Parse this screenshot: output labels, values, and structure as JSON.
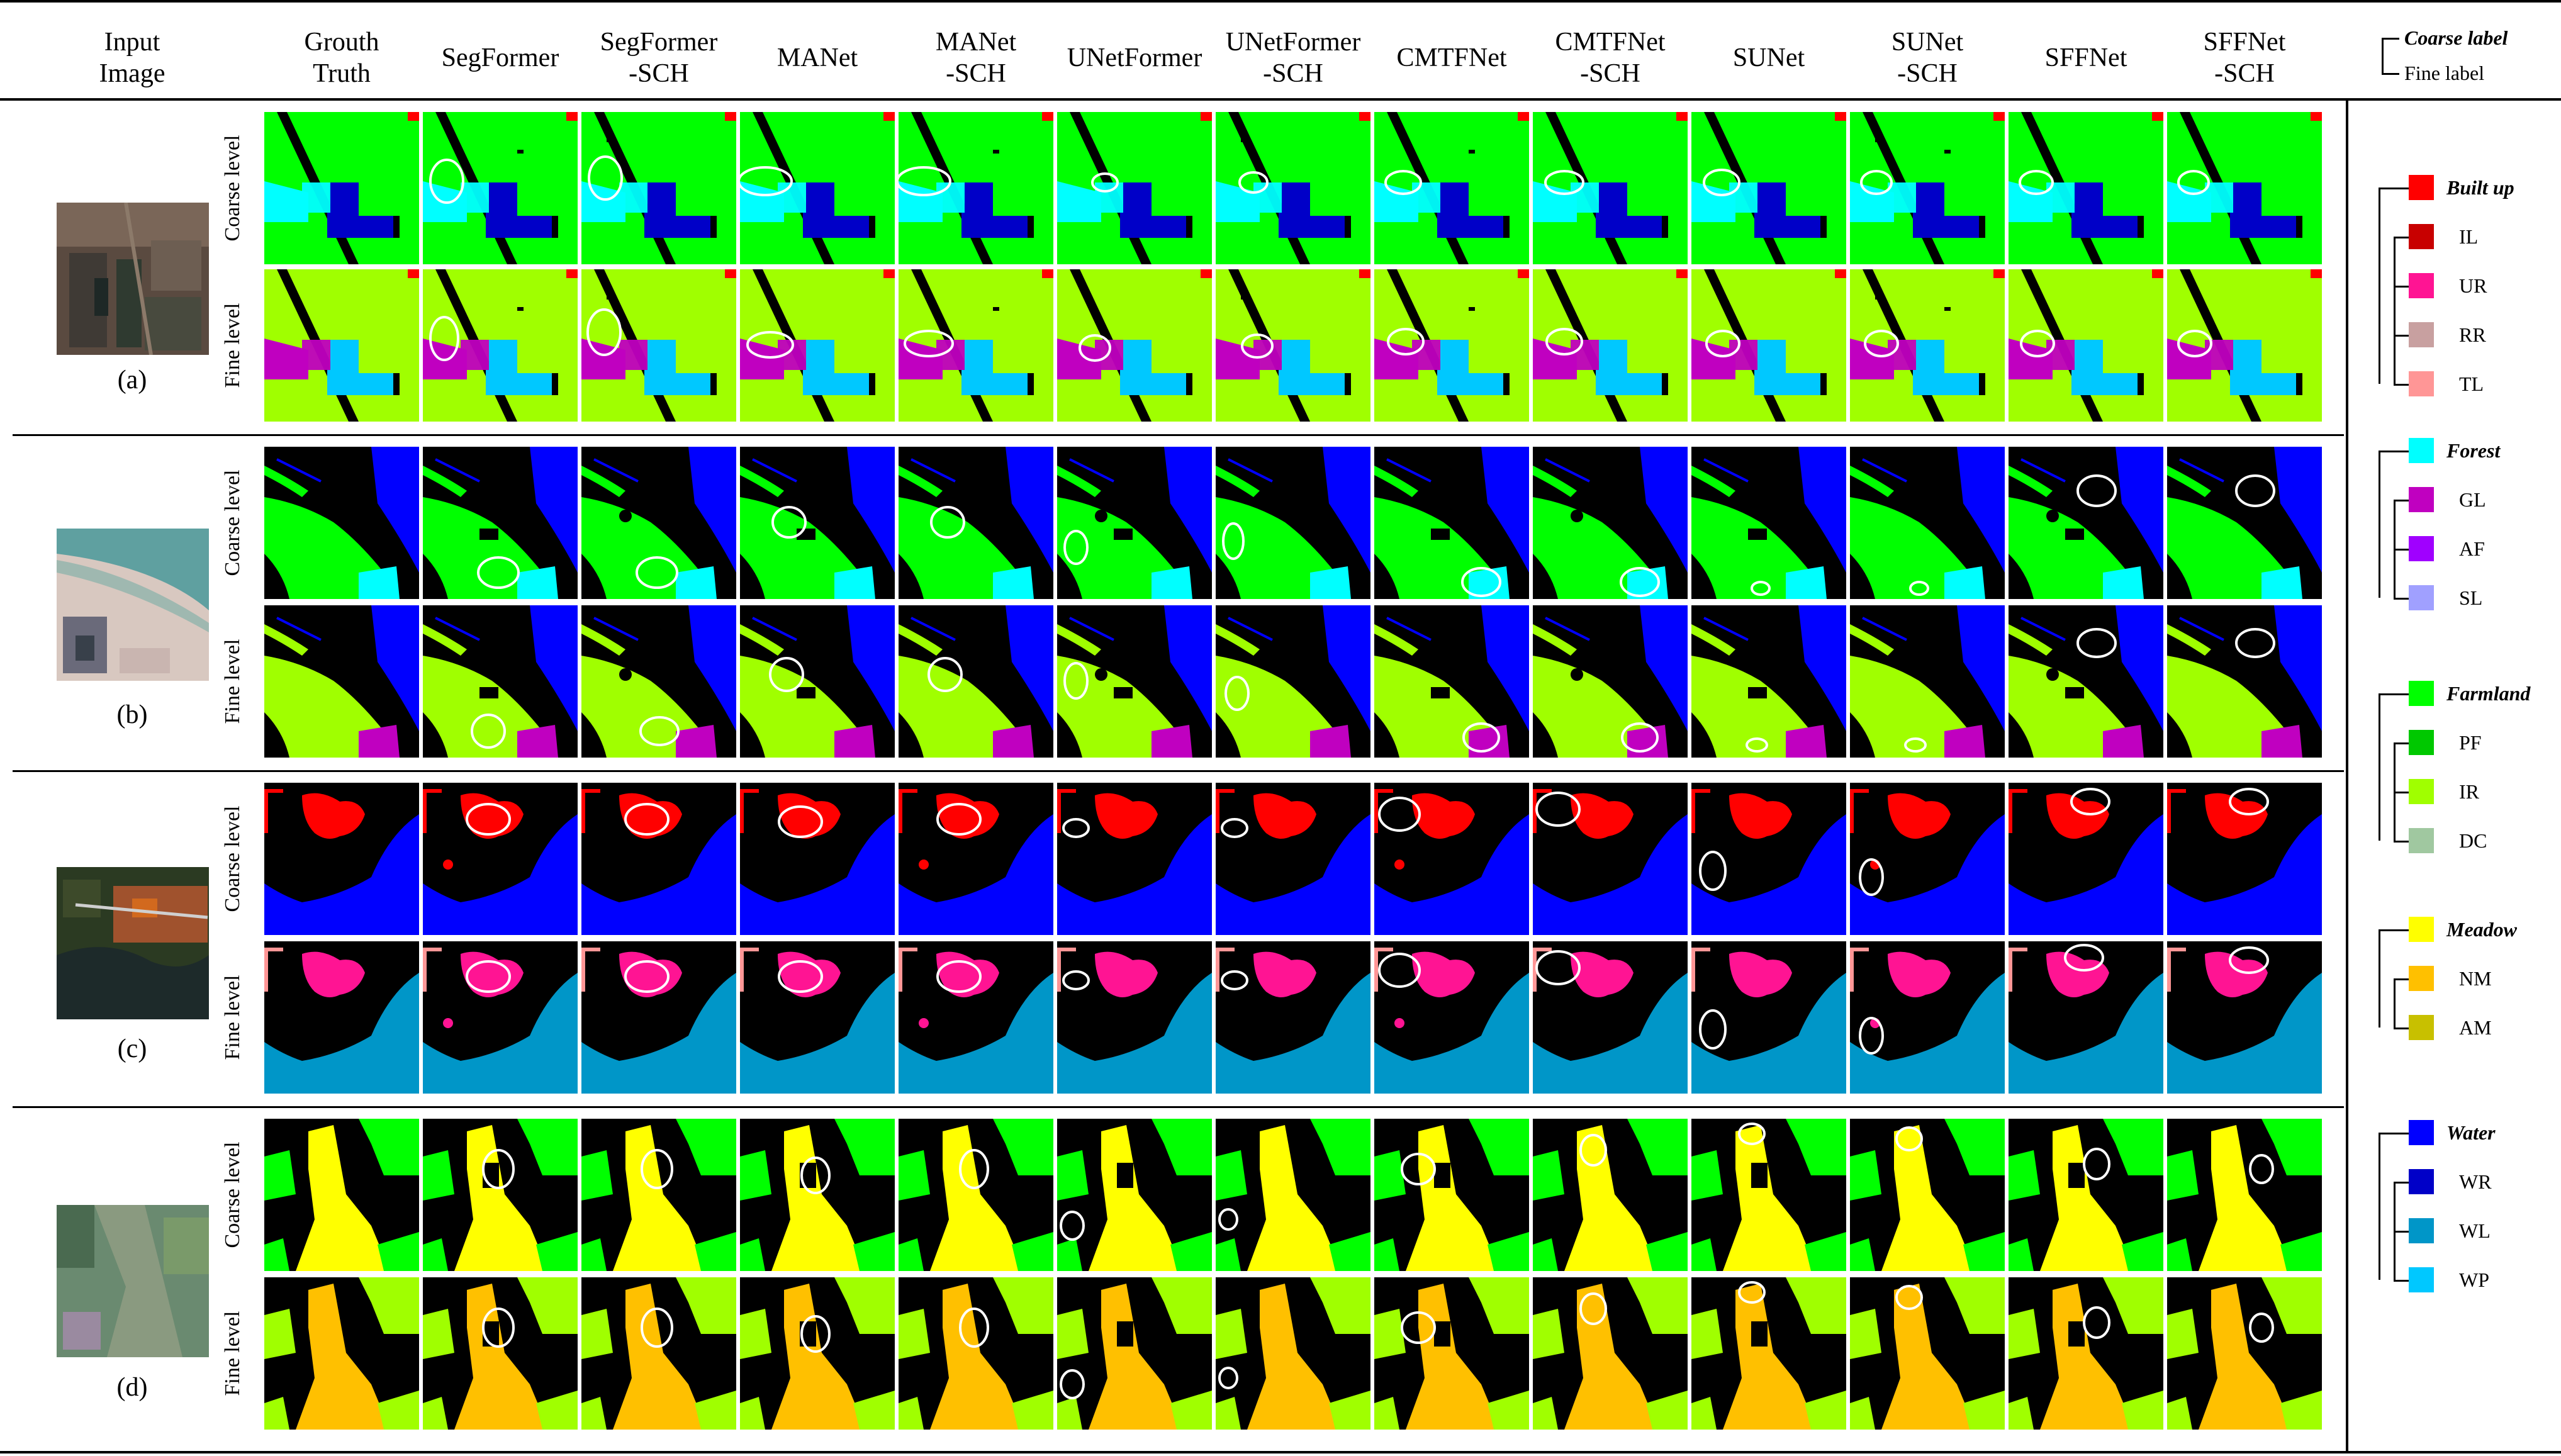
{
  "header": {
    "input_image": [
      "Input",
      "Image"
    ],
    "methods": [
      [
        "Grouth",
        "Truth"
      ],
      [
        "SegFormer"
      ],
      [
        "SegFormer",
        "-SCH"
      ],
      [
        "MANet"
      ],
      [
        "MANet",
        "-SCH"
      ],
      [
        "UNetFormer"
      ],
      [
        "UNetFormer",
        "-SCH"
      ],
      [
        "CMTFNet"
      ],
      [
        "CMTFNet",
        "-SCH"
      ],
      [
        "SUNet"
      ],
      [
        "SUNet",
        "-SCH"
      ],
      [
        "SFFNet"
      ],
      [
        "SFFNet",
        "-SCH"
      ]
    ],
    "legend_key": {
      "coarse": "Coarse label",
      "fine": "Fine label"
    }
  },
  "levels": {
    "coarse": "Coarse level",
    "fine": "Fine level"
  },
  "cases": [
    {
      "label": "(a)"
    },
    {
      "label": "(b)"
    },
    {
      "label": "(c)"
    },
    {
      "label": "(d)"
    }
  ],
  "legend": [
    {
      "coarse": "Built up",
      "color": "#ff0000",
      "fine": [
        {
          "label": "IL",
          "color": "#c80000"
        },
        {
          "label": "UR",
          "color": "#ff1493"
        },
        {
          "label": "RR",
          "color": "#c8a0a0"
        },
        {
          "label": "TL",
          "color": "#ff9696"
        }
      ]
    },
    {
      "coarse": "Forest",
      "color": "#00ffff",
      "fine": [
        {
          "label": "GL",
          "color": "#c000c0"
        },
        {
          "label": "AF",
          "color": "#a000ff"
        },
        {
          "label": "SL",
          "color": "#a0a0ff"
        }
      ]
    },
    {
      "coarse": "Farmland",
      "color": "#00ff00",
      "fine": [
        {
          "label": "PF",
          "color": "#00c800"
        },
        {
          "label": "IR",
          "color": "#a0ff00"
        },
        {
          "label": "DC",
          "color": "#a0c8a0"
        }
      ]
    },
    {
      "coarse": "Meadow",
      "color": "#ffff00",
      "fine": [
        {
          "label": "NM",
          "color": "#ffc000"
        },
        {
          "label": "AM",
          "color": "#c8c000"
        }
      ]
    },
    {
      "coarse": "Water",
      "color": "#0000ff",
      "fine": [
        {
          "label": "WR",
          "color": "#0000c8"
        },
        {
          "label": "WL",
          "color": "#0096c8"
        },
        {
          "label": "WP",
          "color": "#00c8ff"
        }
      ]
    }
  ]
}
